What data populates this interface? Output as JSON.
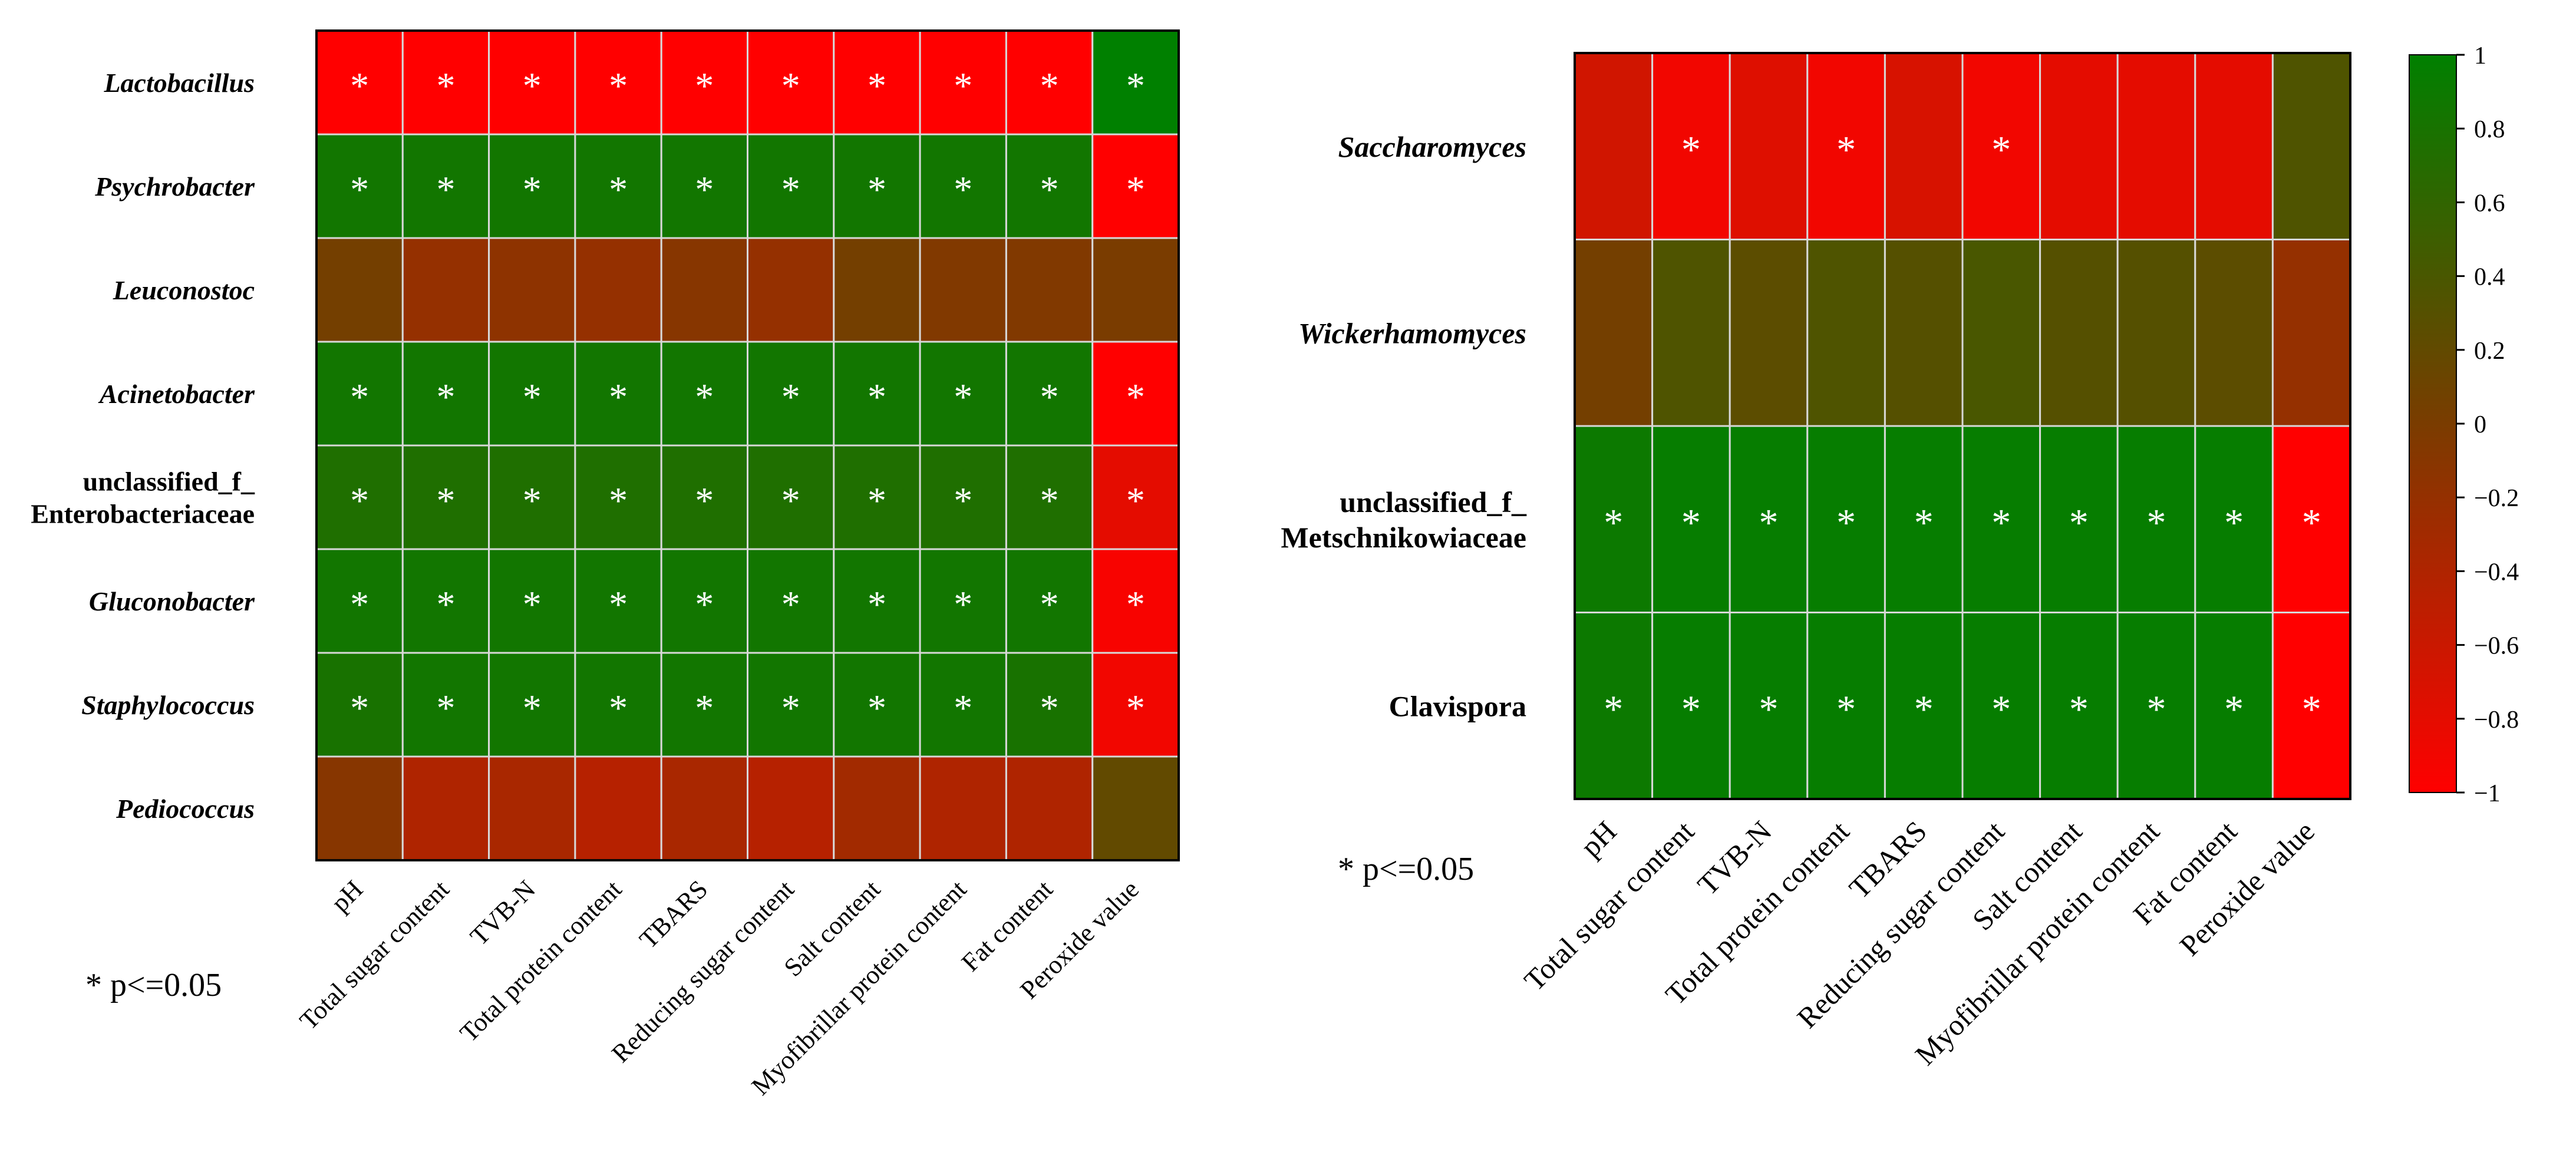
{
  "significance_note": "* p<=0.05",
  "colors": {
    "negative": "#ff0000",
    "zero": "#7a3c00",
    "positive": "#008000",
    "grid": "#d8d8d8",
    "star": "#ffffff"
  },
  "colorbar": {
    "ticks": [
      "1",
      "0.8",
      "0.6",
      "0.4",
      "0.2",
      "0",
      "−0.2",
      "−0.4",
      "−0.6",
      "−0.8",
      "−1"
    ]
  },
  "chart_data": [
    {
      "type": "heatmap",
      "title": "",
      "rows": [
        {
          "label": "Lactobacillus",
          "italic": true
        },
        {
          "label": "Psychrobacter",
          "italic": true
        },
        {
          "label": "Leuconostoc",
          "italic": true
        },
        {
          "label": "Acinetobacter",
          "italic": true
        },
        {
          "label": "unclassified_f_\nEnterobacteriaceae",
          "italic": false
        },
        {
          "label": "Gluconobacter",
          "italic": true
        },
        {
          "label": "Staphylococcus",
          "italic": true
        },
        {
          "label": "Pediococcus",
          "italic": true
        }
      ],
      "columns": [
        "pH",
        "Total sugar content",
        "TVB-N",
        "Total protein content",
        "TBARS",
        "Reducing sugar content",
        "Salt content",
        "Myofibrillar protein content",
        "Fat content",
        "Peroxide value"
      ],
      "values": [
        [
          -1,
          -1,
          -1,
          -1,
          -1,
          -1,
          -1,
          -1,
          -1,
          1
        ],
        [
          0.85,
          0.85,
          0.85,
          0.85,
          0.85,
          0.85,
          0.85,
          0.85,
          0.85,
          -1
        ],
        [
          0.05,
          -0.2,
          -0.15,
          -0.2,
          -0.1,
          -0.2,
          0.05,
          -0.05,
          -0.05,
          0.0
        ],
        [
          0.85,
          0.85,
          0.85,
          0.85,
          0.85,
          0.85,
          0.85,
          0.85,
          0.85,
          -1
        ],
        [
          0.75,
          0.75,
          0.75,
          0.75,
          0.75,
          0.75,
          0.75,
          0.75,
          0.75,
          -0.8
        ],
        [
          0.85,
          0.85,
          0.85,
          0.85,
          0.85,
          0.85,
          0.85,
          0.85,
          0.85,
          -0.95
        ],
        [
          0.8,
          0.85,
          0.85,
          0.85,
          0.85,
          0.85,
          0.85,
          0.85,
          0.8,
          -0.9
        ],
        [
          -0.1,
          -0.4,
          -0.35,
          -0.45,
          -0.35,
          -0.45,
          -0.3,
          -0.4,
          -0.4,
          0.2
        ]
      ],
      "significant": [
        [
          1,
          1,
          1,
          1,
          1,
          1,
          1,
          1,
          1,
          1
        ],
        [
          1,
          1,
          1,
          1,
          1,
          1,
          1,
          1,
          1,
          1
        ],
        [
          0,
          0,
          0,
          0,
          0,
          0,
          0,
          0,
          0,
          0
        ],
        [
          1,
          1,
          1,
          1,
          1,
          1,
          1,
          1,
          1,
          1
        ],
        [
          1,
          1,
          1,
          1,
          1,
          1,
          1,
          1,
          1,
          1
        ],
        [
          1,
          1,
          1,
          1,
          1,
          1,
          1,
          1,
          1,
          1
        ],
        [
          1,
          1,
          1,
          1,
          1,
          1,
          1,
          1,
          1,
          1
        ],
        [
          0,
          0,
          0,
          0,
          0,
          0,
          0,
          0,
          0,
          0
        ]
      ],
      "color_range": [
        -1,
        1
      ]
    },
    {
      "type": "heatmap",
      "title": "",
      "rows": [
        {
          "label": "Saccharomyces",
          "italic": true
        },
        {
          "label": "Wickerhamomyces",
          "italic": true
        },
        {
          "label": "unclassified_f_\nMetschnikowiaceae",
          "italic": false
        },
        {
          "label": "Clavispora",
          "italic": false
        }
      ],
      "columns": [
        "pH",
        "Total sugar content",
        "TVB-N",
        "Total protein content",
        "TBARS",
        "Reducing sugar content",
        "Salt content",
        "Myofibrillar protein content",
        "Fat content",
        "Peroxide value"
      ],
      "values": [
        [
          -0.65,
          -0.9,
          -0.75,
          -0.9,
          -0.7,
          -0.9,
          -0.8,
          -0.8,
          -0.8,
          0.35
        ],
        [
          0.05,
          0.35,
          0.25,
          0.35,
          0.3,
          0.4,
          0.3,
          0.3,
          0.25,
          -0.2
        ],
        [
          0.9,
          0.95,
          0.95,
          0.95,
          0.95,
          0.95,
          0.95,
          0.95,
          0.95,
          -1
        ],
        [
          0.9,
          0.95,
          0.95,
          0.95,
          0.95,
          0.95,
          0.95,
          0.95,
          0.95,
          -1
        ]
      ],
      "significant": [
        [
          0,
          1,
          0,
          1,
          0,
          1,
          0,
          0,
          0,
          0
        ],
        [
          0,
          0,
          0,
          0,
          0,
          0,
          0,
          0,
          0,
          0
        ],
        [
          1,
          1,
          1,
          1,
          1,
          1,
          1,
          1,
          1,
          1
        ],
        [
          1,
          1,
          1,
          1,
          1,
          1,
          1,
          1,
          1,
          1
        ]
      ],
      "color_range": [
        -1,
        1
      ],
      "colorbar": true
    }
  ]
}
